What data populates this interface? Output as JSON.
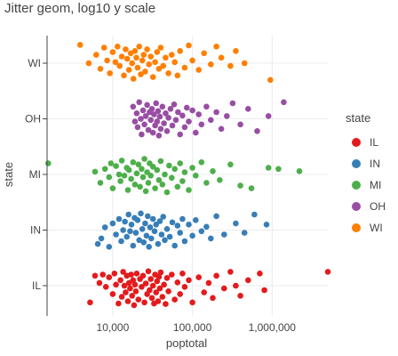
{
  "chart_data": {
    "type": "scatter",
    "title": "Jitter geom, log10 y scale",
    "xlabel": "poptotal",
    "ylabel": "state",
    "x_scale": "log10",
    "xlim": [
      1500,
      5000000
    ],
    "x_ticks": [
      10000,
      100000,
      1000000
    ],
    "x_tick_labels": [
      "10,000",
      "100,000",
      "1,000,000"
    ],
    "categories": [
      "IL",
      "IN",
      "MI",
      "OH",
      "WI"
    ],
    "legend_title": "state",
    "legend_position": "right",
    "grid": true,
    "series": [
      {
        "name": "IL",
        "color": "#e41a1c",
        "points": [
          [
            5200,
            -0.3
          ],
          [
            6000,
            0.18
          ],
          [
            6800,
            0.05
          ],
          [
            7500,
            0.2
          ],
          [
            8200,
            -0.02
          ],
          [
            9000,
            0.15
          ],
          [
            10000,
            -0.15
          ],
          [
            10500,
            0.22
          ],
          [
            11000,
            0.02
          ],
          [
            11800,
            -0.32
          ],
          [
            12500,
            0.1
          ],
          [
            13000,
            -0.2
          ],
          [
            13500,
            0.25
          ],
          [
            14000,
            0.0
          ],
          [
            14500,
            -0.12
          ],
          [
            15000,
            0.18
          ],
          [
            15500,
            -0.28
          ],
          [
            16000,
            0.05
          ],
          [
            16500,
            -0.05
          ],
          [
            17000,
            0.2
          ],
          [
            17500,
            -0.18
          ],
          [
            18000,
            0.1
          ],
          [
            18500,
            -0.35
          ],
          [
            19000,
            0.02
          ],
          [
            19500,
            -0.1
          ],
          [
            20000,
            0.22
          ],
          [
            21000,
            -0.25
          ],
          [
            22000,
            0.12
          ],
          [
            23000,
            -0.02
          ],
          [
            24000,
            0.18
          ],
          [
            25000,
            -0.3
          ],
          [
            26000,
            0.04
          ],
          [
            27000,
            -0.15
          ],
          [
            28000,
            0.26
          ],
          [
            29000,
            -0.08
          ],
          [
            30000,
            0.12
          ],
          [
            31000,
            -0.22
          ],
          [
            32000,
            0.0
          ],
          [
            33000,
            -0.32
          ],
          [
            34000,
            0.2
          ],
          [
            35000,
            -0.12
          ],
          [
            36000,
            0.08
          ],
          [
            37000,
            -0.28
          ],
          [
            38000,
            0.16
          ],
          [
            39000,
            -0.05
          ],
          [
            40000,
            0.24
          ],
          [
            42000,
            -0.2
          ],
          [
            44000,
            0.02
          ],
          [
            46000,
            -0.33
          ],
          [
            48000,
            0.14
          ],
          [
            50000,
            -0.1
          ],
          [
            55000,
            0.2
          ],
          [
            60000,
            -0.25
          ],
          [
            65000,
            0.06
          ],
          [
            70000,
            -0.15
          ],
          [
            75000,
            0.22
          ],
          [
            80000,
            -0.02
          ],
          [
            90000,
            0.1
          ],
          [
            100000,
            -0.3
          ],
          [
            120000,
            0.15
          ],
          [
            140000,
            -0.12
          ],
          [
            160000,
            0.05
          ],
          [
            180000,
            -0.22
          ],
          [
            200000,
            0.18
          ],
          [
            250000,
            -0.05
          ],
          [
            300000,
            0.25
          ],
          [
            350000,
            0.0
          ],
          [
            400000,
            -0.18
          ],
          [
            500000,
            0.1
          ],
          [
            700000,
            0.22
          ],
          [
            800000,
            -0.08
          ],
          [
            5100000,
            0.25
          ]
        ]
      },
      {
        "name": "IN",
        "color": "#377eb8",
        "points": [
          [
            6500,
            -0.25
          ],
          [
            7200,
            -0.15
          ],
          [
            8000,
            0.05
          ],
          [
            9000,
            -0.3
          ],
          [
            10000,
            0.12
          ],
          [
            11000,
            -0.08
          ],
          [
            12000,
            0.2
          ],
          [
            12800,
            -0.2
          ],
          [
            13500,
            0.0
          ],
          [
            14200,
            0.15
          ],
          [
            15000,
            -0.12
          ],
          [
            15800,
            0.28
          ],
          [
            16500,
            -0.02
          ],
          [
            17200,
            0.1
          ],
          [
            18000,
            -0.28
          ],
          [
            18800,
            0.22
          ],
          [
            19500,
            -0.05
          ],
          [
            20500,
            0.18
          ],
          [
            21500,
            -0.18
          ],
          [
            22500,
            0.3
          ],
          [
            23500,
            0.02
          ],
          [
            24500,
            -0.22
          ],
          [
            25500,
            0.12
          ],
          [
            26500,
            -0.1
          ],
          [
            27500,
            0.25
          ],
          [
            28500,
            -0.3
          ],
          [
            29500,
            0.05
          ],
          [
            30500,
            -0.15
          ],
          [
            32000,
            0.2
          ],
          [
            33500,
            -0.02
          ],
          [
            35000,
            0.1
          ],
          [
            37000,
            -0.25
          ],
          [
            39000,
            0.16
          ],
          [
            41000,
            -0.08
          ],
          [
            43000,
            0.24
          ],
          [
            45000,
            -0.18
          ],
          [
            48000,
            0.02
          ],
          [
            52000,
            -0.12
          ],
          [
            56000,
            0.14
          ],
          [
            60000,
            -0.28
          ],
          [
            65000,
            0.08
          ],
          [
            70000,
            -0.05
          ],
          [
            75000,
            0.2
          ],
          [
            80000,
            -0.2
          ],
          [
            90000,
            0.1
          ],
          [
            100000,
            -0.1
          ],
          [
            110000,
            0.18
          ],
          [
            130000,
            -0.02
          ],
          [
            150000,
            0.06
          ],
          [
            170000,
            -0.15
          ],
          [
            200000,
            0.25
          ],
          [
            250000,
            -0.08
          ],
          [
            350000,
            0.12
          ],
          [
            450000,
            -0.05
          ],
          [
            600000,
            0.28
          ],
          [
            850000,
            0.1
          ]
        ]
      },
      {
        "name": "MI",
        "color": "#4daf4a",
        "points": [
          [
            1550,
            0.2
          ],
          [
            6000,
            0.05
          ],
          [
            7000,
            -0.15
          ],
          [
            8000,
            0.1
          ],
          [
            9000,
            -0.05
          ],
          [
            9500,
            0.2
          ],
          [
            10000,
            -0.25
          ],
          [
            11000,
            0.15
          ],
          [
            12000,
            0.0
          ],
          [
            12500,
            -0.12
          ],
          [
            13000,
            0.25
          ],
          [
            14000,
            -0.02
          ],
          [
            15000,
            0.12
          ],
          [
            15500,
            -0.28
          ],
          [
            16000,
            0.08
          ],
          [
            17000,
            -0.08
          ],
          [
            18000,
            0.22
          ],
          [
            19000,
            -0.18
          ],
          [
            20000,
            0.02
          ],
          [
            21000,
            0.18
          ],
          [
            22000,
            -0.22
          ],
          [
            23000,
            0.1
          ],
          [
            24000,
            -0.05
          ],
          [
            25000,
            0.28
          ],
          [
            26000,
            -0.3
          ],
          [
            27000,
            0.04
          ],
          [
            28000,
            -0.15
          ],
          [
            29000,
            0.2
          ],
          [
            30000,
            -0.02
          ],
          [
            32000,
            0.14
          ],
          [
            34000,
            -0.25
          ],
          [
            36000,
            0.08
          ],
          [
            38000,
            -0.1
          ],
          [
            40000,
            0.24
          ],
          [
            42000,
            -0.18
          ],
          [
            45000,
            0.0
          ],
          [
            48000,
            -0.32
          ],
          [
            51000,
            0.16
          ],
          [
            55000,
            -0.06
          ],
          [
            60000,
            0.1
          ],
          [
            65000,
            -0.22
          ],
          [
            70000,
            0.2
          ],
          [
            75000,
            -0.12
          ],
          [
            80000,
            0.04
          ],
          [
            90000,
            -0.28
          ],
          [
            100000,
            0.12
          ],
          [
            110000,
            -0.02
          ],
          [
            130000,
            0.22
          ],
          [
            150000,
            -0.15
          ],
          [
            180000,
            0.06
          ],
          [
            220000,
            -0.1
          ],
          [
            300000,
            0.18
          ],
          [
            400000,
            -0.2
          ],
          [
            550000,
            -0.25
          ],
          [
            900000,
            0.12
          ],
          [
            1200000,
            0.1
          ],
          [
            2200000,
            0.06
          ]
        ]
      },
      {
        "name": "OH",
        "color": "#984ea3",
        "points": [
          [
            18000,
            0.22
          ],
          [
            19000,
            -0.05
          ],
          [
            20000,
            0.1
          ],
          [
            20500,
            -0.15
          ],
          [
            21500,
            0.3
          ],
          [
            22500,
            0.0
          ],
          [
            23000,
            -0.28
          ],
          [
            24000,
            0.15
          ],
          [
            25000,
            -0.1
          ],
          [
            26000,
            0.05
          ],
          [
            27000,
            0.25
          ],
          [
            28000,
            -0.2
          ],
          [
            29000,
            0.12
          ],
          [
            30000,
            -0.02
          ],
          [
            31000,
            0.18
          ],
          [
            32000,
            -0.25
          ],
          [
            33000,
            0.08
          ],
          [
            34000,
            -0.12
          ],
          [
            35000,
            0.28
          ],
          [
            36000,
            -0.05
          ],
          [
            37000,
            0.14
          ],
          [
            38000,
            -0.3
          ],
          [
            39000,
            0.04
          ],
          [
            40000,
            -0.18
          ],
          [
            42000,
            0.22
          ],
          [
            44000,
            -0.08
          ],
          [
            46000,
            0.1
          ],
          [
            48000,
            -0.22
          ],
          [
            50000,
            0.02
          ],
          [
            53000,
            0.18
          ],
          [
            56000,
            -0.12
          ],
          [
            59000,
            0.26
          ],
          [
            62000,
            -0.02
          ],
          [
            66000,
            0.12
          ],
          [
            70000,
            -0.28
          ],
          [
            75000,
            0.06
          ],
          [
            80000,
            -0.15
          ],
          [
            85000,
            0.2
          ],
          [
            90000,
            -0.05
          ],
          [
            100000,
            0.15
          ],
          [
            110000,
            -0.25
          ],
          [
            120000,
            0.08
          ],
          [
            130000,
            -0.1
          ],
          [
            150000,
            0.22
          ],
          [
            170000,
            -0.02
          ],
          [
            200000,
            0.12
          ],
          [
            230000,
            -0.18
          ],
          [
            270000,
            0.05
          ],
          [
            320000,
            0.28
          ],
          [
            400000,
            -0.1
          ],
          [
            500000,
            0.18
          ],
          [
            650000,
            -0.22
          ],
          [
            900000,
            0.05
          ],
          [
            1400000,
            0.3
          ]
        ]
      },
      {
        "name": "WI",
        "color": "#ff7f00",
        "points": [
          [
            3900,
            0.33
          ],
          [
            5000,
            0.0
          ],
          [
            6200,
            0.15
          ],
          [
            7000,
            -0.1
          ],
          [
            7800,
            0.28
          ],
          [
            8500,
            0.05
          ],
          [
            9200,
            -0.18
          ],
          [
            10000,
            0.2
          ],
          [
            10800,
            0.02
          ],
          [
            11500,
            0.3
          ],
          [
            12200,
            -0.05
          ],
          [
            13000,
            0.12
          ],
          [
            13800,
            -0.22
          ],
          [
            14500,
            0.25
          ],
          [
            15200,
            0.08
          ],
          [
            16000,
            -0.12
          ],
          [
            16800,
            0.18
          ],
          [
            17500,
            0.0
          ],
          [
            18200,
            -0.28
          ],
          [
            19000,
            0.22
          ],
          [
            19800,
            0.1
          ],
          [
            20500,
            -0.08
          ],
          [
            21500,
            0.3
          ],
          [
            22500,
            -0.2
          ],
          [
            23500,
            0.05
          ],
          [
            24500,
            0.15
          ],
          [
            25500,
            -0.15
          ],
          [
            27000,
            0.25
          ],
          [
            28500,
            -0.02
          ],
          [
            30000,
            0.12
          ],
          [
            32000,
            -0.25
          ],
          [
            34000,
            0.02
          ],
          [
            36000,
            0.2
          ],
          [
            38000,
            -0.1
          ],
          [
            40000,
            0.28
          ],
          [
            43000,
            -0.05
          ],
          [
            46000,
            0.1
          ],
          [
            50000,
            -0.18
          ],
          [
            55000,
            0.15
          ],
          [
            60000,
            0.02
          ],
          [
            65000,
            -0.22
          ],
          [
            70000,
            0.22
          ],
          [
            80000,
            -0.08
          ],
          [
            90000,
            0.32
          ],
          [
            100000,
            0.05
          ],
          [
            120000,
            -0.12
          ],
          [
            140000,
            0.18
          ],
          [
            170000,
            -0.02
          ],
          [
            200000,
            0.3
          ],
          [
            230000,
            0.1
          ],
          [
            300000,
            -0.05
          ],
          [
            350000,
            0.22
          ],
          [
            450000,
            0.0
          ],
          [
            950000,
            -0.3
          ]
        ]
      }
    ]
  }
}
